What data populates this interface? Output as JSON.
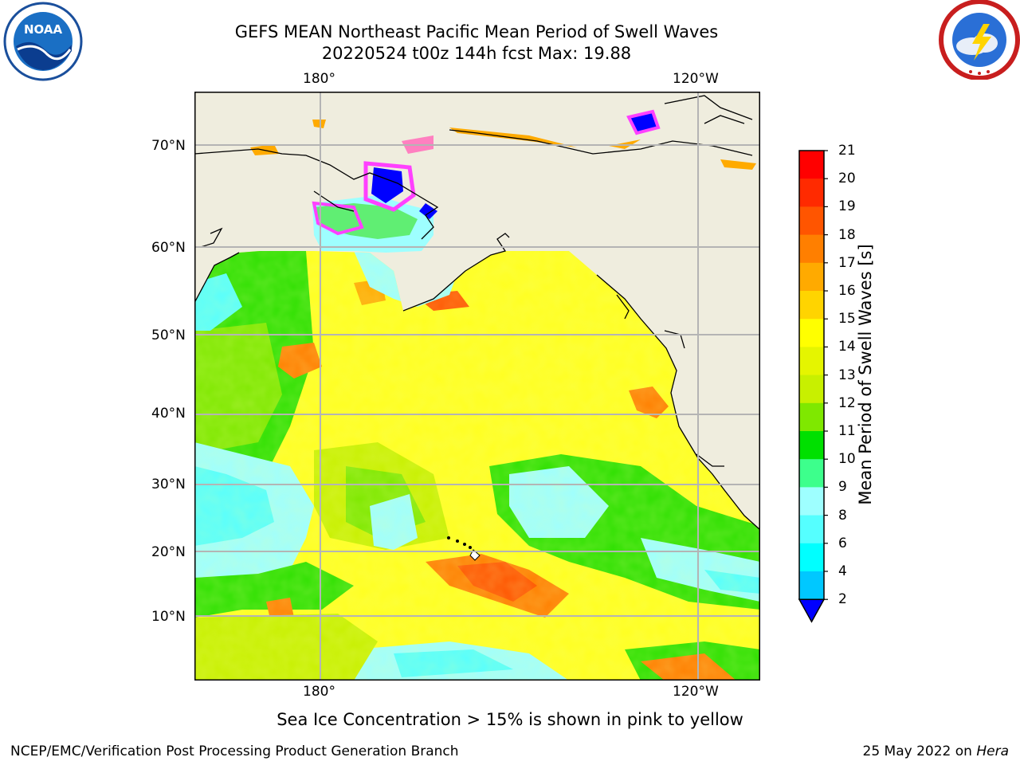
{
  "header": {
    "title_line1": "GEFS MEAN Northeast Pacific Mean Period of Swell Waves",
    "title_line2": "20220524 t00z 144h fcst   Max: 19.88"
  },
  "logos": {
    "left": {
      "name": "noaa-logo",
      "text": "NOAA"
    },
    "right": {
      "name": "national-weather-service-logo"
    }
  },
  "map": {
    "lon_labels_top": [
      "180°",
      "120°W"
    ],
    "lon_labels_bottom": [
      "180°",
      "120°W"
    ],
    "lat_labels": [
      "70°N",
      "60°N",
      "50°N",
      "40°N",
      "30°N",
      "20°N",
      "10°N"
    ],
    "land_color": "#efedde",
    "grid_color": "#b4b4b4"
  },
  "colorbar": {
    "label": "Mean Period of Swell Waves [s]",
    "ticks": [
      "21",
      "20",
      "19",
      "18",
      "17",
      "16",
      "15",
      "14",
      "13",
      "12",
      "11",
      "10",
      "9",
      "8",
      "6",
      "4",
      "2"
    ],
    "colors_top_to_bottom": [
      "#ff0000",
      "#ff2a00",
      "#ff5500",
      "#ff7f00",
      "#ffaa00",
      "#ffd400",
      "#ffff00",
      "#e5f500",
      "#c8f000",
      "#7fe800",
      "#00e000",
      "#3dff8c",
      "#9effff",
      "#55ffff",
      "#00ffff",
      "#00c8ff",
      "#0064ff"
    ],
    "extend_color": "#0000ff"
  },
  "note": "Sea Ice Concentration > 15% is shown in pink to yellow",
  "footer": {
    "left": "NCEP/EMC/Verification Post Processing Product Generation Branch",
    "right_date": "25 May 2022 on",
    "right_host": "Hera"
  }
}
